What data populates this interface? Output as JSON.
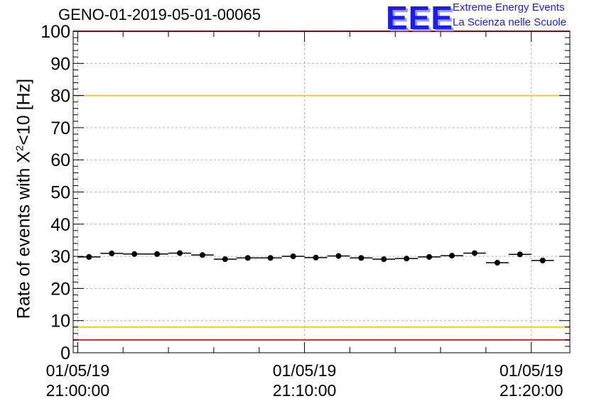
{
  "header": {
    "title": "GENO-01-2019-05-01-00065",
    "logo": {
      "mark": "EEE",
      "line1": "Extreme Energy Events",
      "line2": "La Scienza nelle Scuole",
      "color": "#1d1de8"
    }
  },
  "chart_data": {
    "type": "scatter",
    "ylabel_prefix": "Rate of events with X",
    "ylabel_sup": "2",
    "ylabel_suffix": "<10 [Hz]",
    "ylim": [
      0,
      100
    ],
    "yticks": [
      0,
      10,
      20,
      30,
      40,
      50,
      60,
      70,
      80,
      90,
      100
    ],
    "xlim_minutes": [
      -0.2,
      21.7
    ],
    "xticks": [
      {
        "date": "01/05/19",
        "time": "21:00:00",
        "minute": 0
      },
      {
        "date": "01/05/19",
        "time": "21:10:00",
        "minute": 10
      },
      {
        "date": "01/05/19",
        "time": "21:20:00",
        "minute": 20
      }
    ],
    "grid": true,
    "bin_width_minutes": 1,
    "series": [
      {
        "x_minutes": [
          0.5,
          1.5,
          2.5,
          3.5,
          4.5,
          5.5,
          6.5,
          7.5,
          8.5,
          9.5,
          10.5,
          11.5,
          12.5,
          13.5,
          14.5,
          15.5,
          16.5,
          17.5,
          18.5,
          19.5,
          20.5
        ],
        "values": [
          29.8,
          30.9,
          30.7,
          30.7,
          31.0,
          30.4,
          29.1,
          29.5,
          29.5,
          30.0,
          29.6,
          30.1,
          29.5,
          29.1,
          29.3,
          29.8,
          30.2,
          31.0,
          28.0,
          30.6,
          28.7
        ]
      }
    ],
    "reference_lines": [
      {
        "value": 100,
        "color": "#e8201c"
      },
      {
        "value": 80,
        "color": "#f0cc1c"
      },
      {
        "value": 8,
        "color": "#f0cc1c"
      },
      {
        "value": 4,
        "color": "#e8201c"
      }
    ]
  }
}
